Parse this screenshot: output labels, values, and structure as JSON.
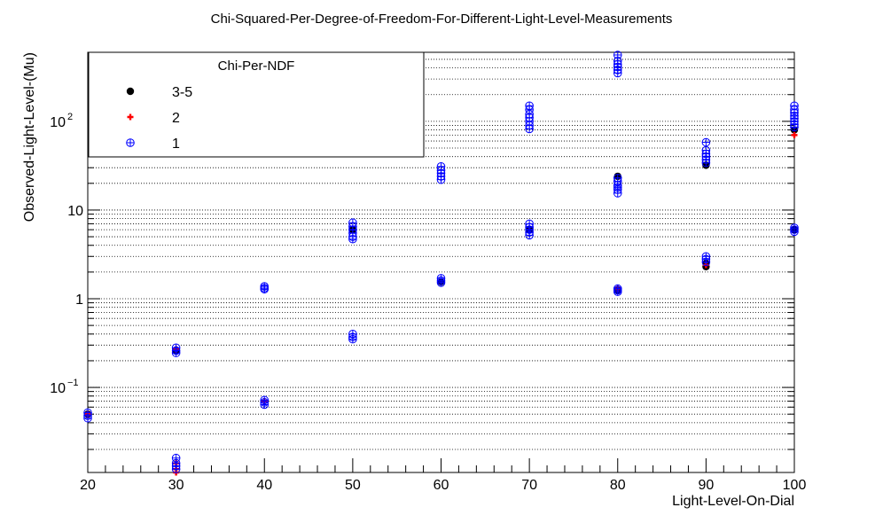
{
  "chart_data": {
    "type": "scatter",
    "title": "Chi-Squared-Per-Degree-of-Freedom-For-Different-Light-Level-Measurements",
    "xlabel": "Light-Level-On-Dial",
    "ylabel": "Observed-Light-Level-(Mu)",
    "xlim": [
      20,
      100
    ],
    "ylim": [
      0.011,
      600
    ],
    "yscale": "log",
    "x_ticks": [
      "20",
      "30",
      "40",
      "50",
      "60",
      "70",
      "80",
      "90",
      "100"
    ],
    "y_ticks": [
      {
        "value": 0.1,
        "base": "10",
        "exp": "−1"
      },
      {
        "value": 1,
        "base": "1",
        "exp": ""
      },
      {
        "value": 10,
        "base": "10",
        "exp": ""
      },
      {
        "value": 100,
        "base": "10",
        "exp": "2"
      }
    ],
    "grid": "horizontal dotted at every log tick",
    "legend": {
      "title": "Chi-Per-NDF",
      "position": "top-left",
      "entries": [
        {
          "label": "3-5",
          "marker": "filled-circle",
          "color": "#000000"
        },
        {
          "label": "2",
          "marker": "plus",
          "color": "#ff0000"
        },
        {
          "label": "1",
          "marker": "circle-plus",
          "color": "#0000ff"
        }
      ]
    },
    "series": [
      {
        "name": "3-5",
        "marker": "filled-circle",
        "color": "#000000",
        "points": [
          [
            20,
            0.05
          ],
          [
            30,
            0.26
          ],
          [
            50,
            6.0
          ],
          [
            60,
            1.55
          ],
          [
            70,
            6.0
          ],
          [
            80,
            1.25
          ],
          [
            80,
            24
          ],
          [
            90,
            2.3
          ],
          [
            90,
            32
          ],
          [
            90,
            2.5
          ],
          [
            100,
            80
          ],
          [
            100,
            6.0
          ]
        ]
      },
      {
        "name": "2",
        "marker": "plus",
        "color": "#ff0000",
        "points": [
          [
            20,
            0.05
          ],
          [
            30,
            0.27
          ],
          [
            30,
            0.014
          ],
          [
            30,
            0.012
          ],
          [
            30,
            0.011
          ],
          [
            40,
            0.07
          ],
          [
            80,
            1.3
          ],
          [
            90,
            2.4
          ],
          [
            100,
            70
          ]
        ]
      },
      {
        "name": "1",
        "marker": "circle-plus",
        "color": "#0000ff",
        "points": [
          [
            20,
            0.052
          ],
          [
            20,
            0.048
          ],
          [
            20,
            0.045
          ],
          [
            30,
            0.28
          ],
          [
            30,
            0.26
          ],
          [
            30,
            0.245
          ],
          [
            30,
            0.016
          ],
          [
            30,
            0.014
          ],
          [
            30,
            0.013
          ],
          [
            30,
            0.012
          ],
          [
            40,
            1.38
          ],
          [
            40,
            1.32
          ],
          [
            40,
            1.28
          ],
          [
            40,
            0.072
          ],
          [
            40,
            0.068
          ],
          [
            40,
            0.064
          ],
          [
            50,
            7.2
          ],
          [
            50,
            6.5
          ],
          [
            50,
            6.0
          ],
          [
            50,
            5.5
          ],
          [
            50,
            5.0
          ],
          [
            50,
            4.7
          ],
          [
            50,
            0.4
          ],
          [
            50,
            0.37
          ],
          [
            50,
            0.35
          ],
          [
            60,
            31
          ],
          [
            60,
            28
          ],
          [
            60,
            26
          ],
          [
            60,
            24
          ],
          [
            60,
            22
          ],
          [
            60,
            1.7
          ],
          [
            60,
            1.6
          ],
          [
            60,
            1.52
          ],
          [
            70,
            150
          ],
          [
            70,
            135
          ],
          [
            70,
            120
          ],
          [
            70,
            110
          ],
          [
            70,
            100
          ],
          [
            70,
            90
          ],
          [
            70,
            82
          ],
          [
            70,
            7.0
          ],
          [
            70,
            6.4
          ],
          [
            70,
            6.0
          ],
          [
            70,
            5.6
          ],
          [
            70,
            5.2
          ],
          [
            80,
            560
          ],
          [
            80,
            480
          ],
          [
            80,
            440
          ],
          [
            80,
            410
          ],
          [
            80,
            380
          ],
          [
            80,
            350
          ],
          [
            80,
            23
          ],
          [
            80,
            21
          ],
          [
            80,
            19
          ],
          [
            80,
            18
          ],
          [
            80,
            17
          ],
          [
            80,
            15.5
          ],
          [
            80,
            1.3
          ],
          [
            80,
            1.25
          ],
          [
            80,
            1.2
          ],
          [
            90,
            58
          ],
          [
            90,
            47
          ],
          [
            90,
            43
          ],
          [
            90,
            40
          ],
          [
            90,
            37
          ],
          [
            90,
            34
          ],
          [
            90,
            3.0
          ],
          [
            90,
            2.8
          ],
          [
            90,
            2.6
          ],
          [
            100,
            150
          ],
          [
            100,
            135
          ],
          [
            100,
            125
          ],
          [
            100,
            115
          ],
          [
            100,
            108
          ],
          [
            100,
            100
          ],
          [
            100,
            92
          ],
          [
            100,
            86
          ],
          [
            100,
            6.3
          ],
          [
            100,
            6.0
          ],
          [
            100,
            5.7
          ]
        ]
      }
    ]
  }
}
